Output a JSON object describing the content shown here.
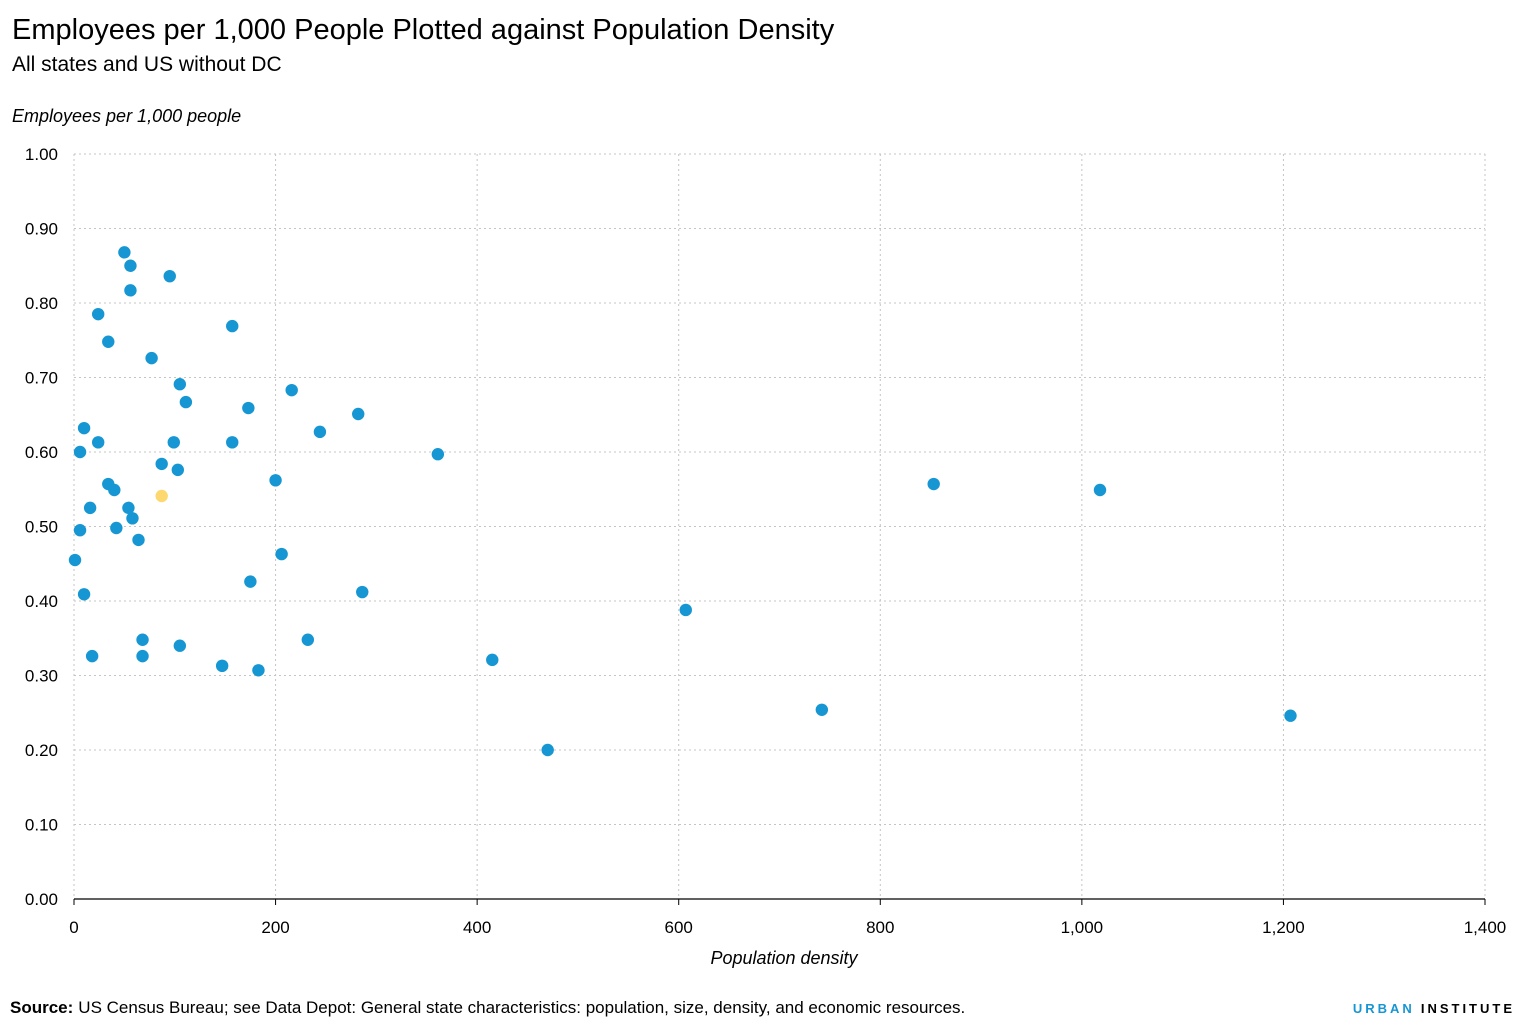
{
  "source": {
    "label": "Source:",
    "text": "US Census Bureau; see Data Depot: General state characteristics: population, size, density, and economic resources."
  },
  "logo": {
    "urban": "URBAN",
    "institute": "INSTITUTE"
  },
  "colors": {
    "logo_blue": "#1696d2",
    "logo_dark": "#000000"
  },
  "chart_data": {
    "type": "scatter",
    "title": "Employees per 1,000 People Plotted against Population Density",
    "subtitle": "All states and US without DC",
    "xlabel": "Population density",
    "ylabel": "Employees per 1,000 people",
    "xlim": [
      0,
      1400
    ],
    "ylim": [
      0,
      1.0
    ],
    "grid": true,
    "x_ticks": [
      {
        "value": 0,
        "label": "0"
      },
      {
        "value": 200,
        "label": "200"
      },
      {
        "value": 400,
        "label": "400"
      },
      {
        "value": 600,
        "label": "600"
      },
      {
        "value": 800,
        "label": "800"
      },
      {
        "value": 1000,
        "label": "1,000"
      },
      {
        "value": 1200,
        "label": "1,200"
      },
      {
        "value": 1400,
        "label": "1,400"
      }
    ],
    "y_ticks": [
      {
        "value": 0.0,
        "label": "0.00"
      },
      {
        "value": 0.1,
        "label": "0.10"
      },
      {
        "value": 0.2,
        "label": "0.20"
      },
      {
        "value": 0.3,
        "label": "0.30"
      },
      {
        "value": 0.4,
        "label": "0.40"
      },
      {
        "value": 0.5,
        "label": "0.50"
      },
      {
        "value": 0.6,
        "label": "0.60"
      },
      {
        "value": 0.7,
        "label": "0.70"
      },
      {
        "value": 0.8,
        "label": "0.80"
      },
      {
        "value": 0.9,
        "label": "0.90"
      },
      {
        "value": 1.0,
        "label": "1.00"
      }
    ],
    "series": [
      {
        "color": "#1696d2",
        "points": [
          [
            50,
            0.868
          ],
          [
            56,
            0.85
          ],
          [
            95,
            0.836
          ],
          [
            56,
            0.817
          ],
          [
            24,
            0.785
          ],
          [
            157,
            0.769
          ],
          [
            34,
            0.748
          ],
          [
            77,
            0.726
          ],
          [
            105,
            0.691
          ],
          [
            216,
            0.683
          ],
          [
            111,
            0.667
          ],
          [
            173,
            0.659
          ],
          [
            282,
            0.651
          ],
          [
            10,
            0.632
          ],
          [
            244,
            0.627
          ],
          [
            24,
            0.613
          ],
          [
            99,
            0.613
          ],
          [
            157,
            0.613
          ],
          [
            6,
            0.6
          ],
          [
            361,
            0.597
          ],
          [
            87,
            0.584
          ],
          [
            103,
            0.576
          ],
          [
            200,
            0.562
          ],
          [
            34,
            0.557
          ],
          [
            853,
            0.557
          ],
          [
            40,
            0.549
          ],
          [
            1018,
            0.549
          ],
          [
            16,
            0.525
          ],
          [
            54,
            0.525
          ],
          [
            58,
            0.511
          ],
          [
            42,
            0.498
          ],
          [
            6,
            0.495
          ],
          [
            64,
            0.482
          ],
          [
            206,
            0.463
          ],
          [
            1,
            0.455
          ],
          [
            175,
            0.426
          ],
          [
            10,
            0.409
          ],
          [
            286,
            0.412
          ],
          [
            607,
            0.388
          ],
          [
            68,
            0.348
          ],
          [
            232,
            0.348
          ],
          [
            105,
            0.34
          ],
          [
            18,
            0.326
          ],
          [
            68,
            0.326
          ],
          [
            415,
            0.321
          ],
          [
            147,
            0.313
          ],
          [
            183,
            0.307
          ],
          [
            742,
            0.254
          ],
          [
            1207,
            0.246
          ],
          [
            470,
            0.2
          ]
        ]
      },
      {
        "color": "#fdd870",
        "points": [
          [
            87,
            0.541
          ]
        ]
      }
    ]
  }
}
